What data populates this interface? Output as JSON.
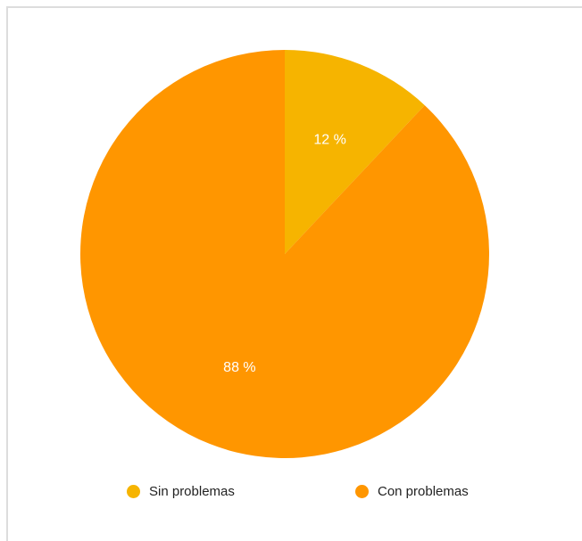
{
  "chart_data": {
    "type": "pie",
    "slices": [
      {
        "label": "Sin problemas",
        "value": 12,
        "value_label": "12 %",
        "color": "#f6b400"
      },
      {
        "label": "Con problemas",
        "value": 88,
        "value_label": "88 %",
        "color": "#ff9600"
      }
    ],
    "legend_position": "bottom",
    "start": "top, clockwise"
  },
  "legend": {
    "items": [
      {
        "label": "Sin problemas",
        "color": "#f6b400"
      },
      {
        "label": "Con problemas",
        "color": "#ff9600"
      }
    ]
  }
}
